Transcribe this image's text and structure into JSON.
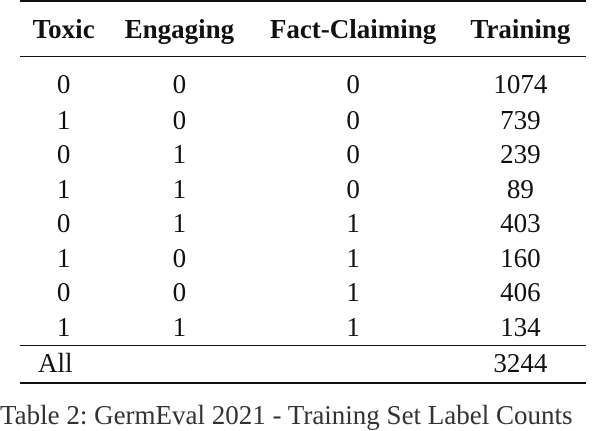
{
  "table": {
    "headers": [
      "Toxic",
      "Engaging",
      "Fact-Claiming",
      "Training"
    ],
    "rows": [
      [
        "0",
        "0",
        "0",
        "1074"
      ],
      [
        "1",
        "0",
        "0",
        "739"
      ],
      [
        "0",
        "1",
        "0",
        "239"
      ],
      [
        "1",
        "1",
        "0",
        "89"
      ],
      [
        "0",
        "1",
        "1",
        "403"
      ],
      [
        "1",
        "0",
        "1",
        "160"
      ],
      [
        "0",
        "0",
        "1",
        "406"
      ],
      [
        "1",
        "1",
        "1",
        "134"
      ]
    ],
    "total": {
      "label": "All",
      "training": "3244"
    }
  },
  "caption": "Table 2: GermEval 2021 - Training Set Label Counts"
}
